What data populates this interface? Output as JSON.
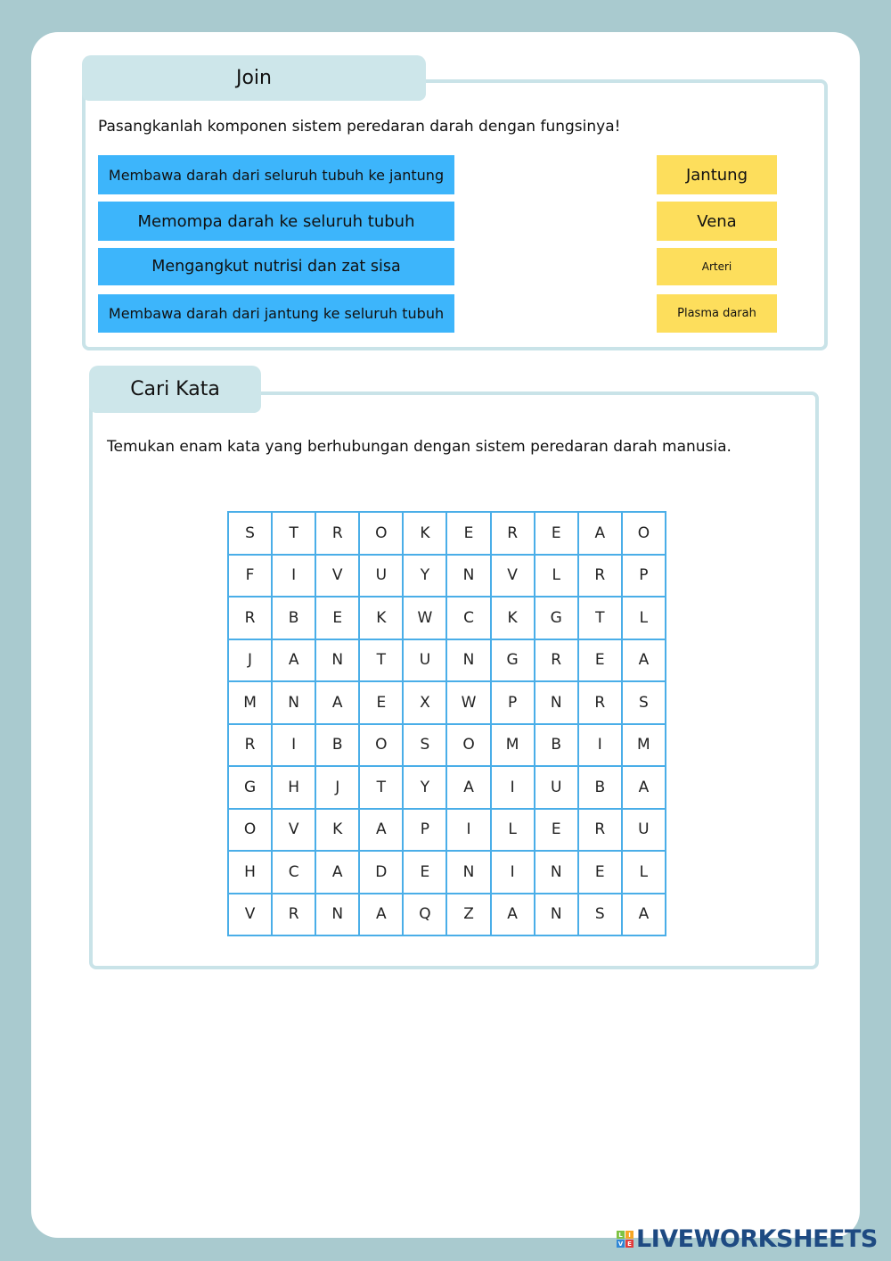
{
  "join": {
    "title": "Join",
    "instruction": "Pasangkanlah komponen sistem peredaran darah dengan fungsinya!",
    "left_items": [
      "Membawa darah dari seluruh tubuh ke jantung",
      "Memompa darah ke seluruh tubuh",
      "Mengangkut nutrisi dan zat sisa",
      "Membawa darah dari jantung ke seluruh tubuh"
    ],
    "right_items": [
      "Jantung",
      "Vena",
      "Arteri",
      "Plasma darah"
    ],
    "colors": {
      "left": "#3db5fb",
      "right": "#fdde5c"
    }
  },
  "cari_kata": {
    "title": "Cari Kata",
    "instruction": "Temukan enam kata yang berhubungan dengan sistem peredaran darah manusia.",
    "grid": [
      [
        "S",
        "T",
        "R",
        "O",
        "K",
        "E",
        "R",
        "E",
        "A",
        "O"
      ],
      [
        "F",
        "I",
        "V",
        "U",
        "Y",
        "N",
        "V",
        "L",
        "R",
        "P"
      ],
      [
        "R",
        "B",
        "E",
        "K",
        "W",
        "C",
        "K",
        "G",
        "T",
        "L"
      ],
      [
        "J",
        "A",
        "N",
        "T",
        "U",
        "N",
        "G",
        "R",
        "E",
        "A"
      ],
      [
        "M",
        "N",
        "A",
        "E",
        "X",
        "W",
        "P",
        "N",
        "R",
        "S"
      ],
      [
        "R",
        "I",
        "B",
        "O",
        "S",
        "O",
        "M",
        "B",
        "I",
        "M"
      ],
      [
        "G",
        "H",
        "J",
        "T",
        "Y",
        "A",
        "I",
        "U",
        "B",
        "A"
      ],
      [
        "O",
        "V",
        "K",
        "A",
        "P",
        "I",
        "L",
        "E",
        "R",
        "U"
      ],
      [
        "H",
        "C",
        "A",
        "D",
        "E",
        "N",
        "I",
        "N",
        "E",
        "L"
      ],
      [
        "V",
        "R",
        "N",
        "A",
        "Q",
        "Z",
        "A",
        "N",
        "S",
        "A"
      ]
    ]
  },
  "footer": {
    "logo_text": "LIVEWORKSHEETS",
    "logo_mark": [
      "L",
      "I",
      "V",
      "E"
    ]
  }
}
